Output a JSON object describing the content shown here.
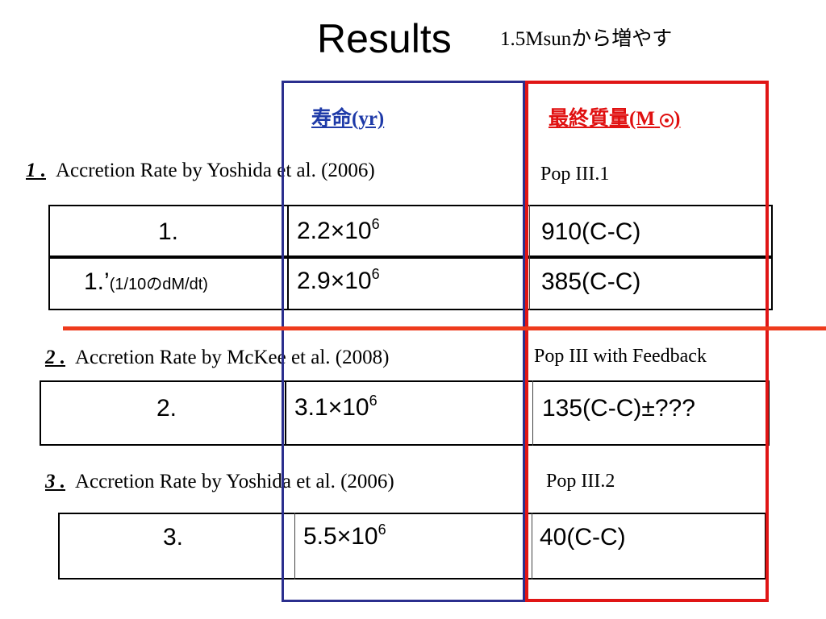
{
  "slide": {
    "title": "Results",
    "subtitle": "1.5Msunから増やす"
  },
  "column_headers": {
    "lifetime_label": "寿命(yr)",
    "mass_label": "最終質量(M",
    "mass_suffix": ")"
  },
  "sections": [
    {
      "number": "1 .",
      "text": "Accretion Rate by Yoshida et al. (2006)",
      "note": "Pop III.1",
      "rows": [
        {
          "label": "1.",
          "label_suffix": "",
          "mantissa": "2.2",
          "exponent": "6",
          "mass": "910(C-C)"
        },
        {
          "label": "1.’",
          "label_suffix": "(1/10のdM/dt)",
          "mantissa": "2.9",
          "exponent": "6",
          "mass": "385(C-C)"
        }
      ]
    },
    {
      "number": "2 .",
      "text": "Accretion Rate by McKee et al. (2008)",
      "note": "Pop III with Feedback",
      "rows": [
        {
          "label": "2.",
          "label_suffix": "",
          "mantissa": "3.1",
          "exponent": "6",
          "mass": "135(C-C)±???"
        }
      ]
    },
    {
      "number": "3 .",
      "text": "Accretion Rate by Yoshida et al. (2006)",
      "note": "Pop III.2",
      "rows": [
        {
          "label": "3.",
          "label_suffix": "",
          "mantissa": "5.5",
          "exponent": "6",
          "mass": "40(C-C)"
        }
      ]
    }
  ],
  "times_sign": "×10",
  "colors": {
    "lifetime_box": "#2b2f8e",
    "mass_box": "#e01515",
    "divider_line": "#ee3a1c",
    "lifetime_header": "#1e3aa8",
    "mass_header": "#e01010"
  }
}
